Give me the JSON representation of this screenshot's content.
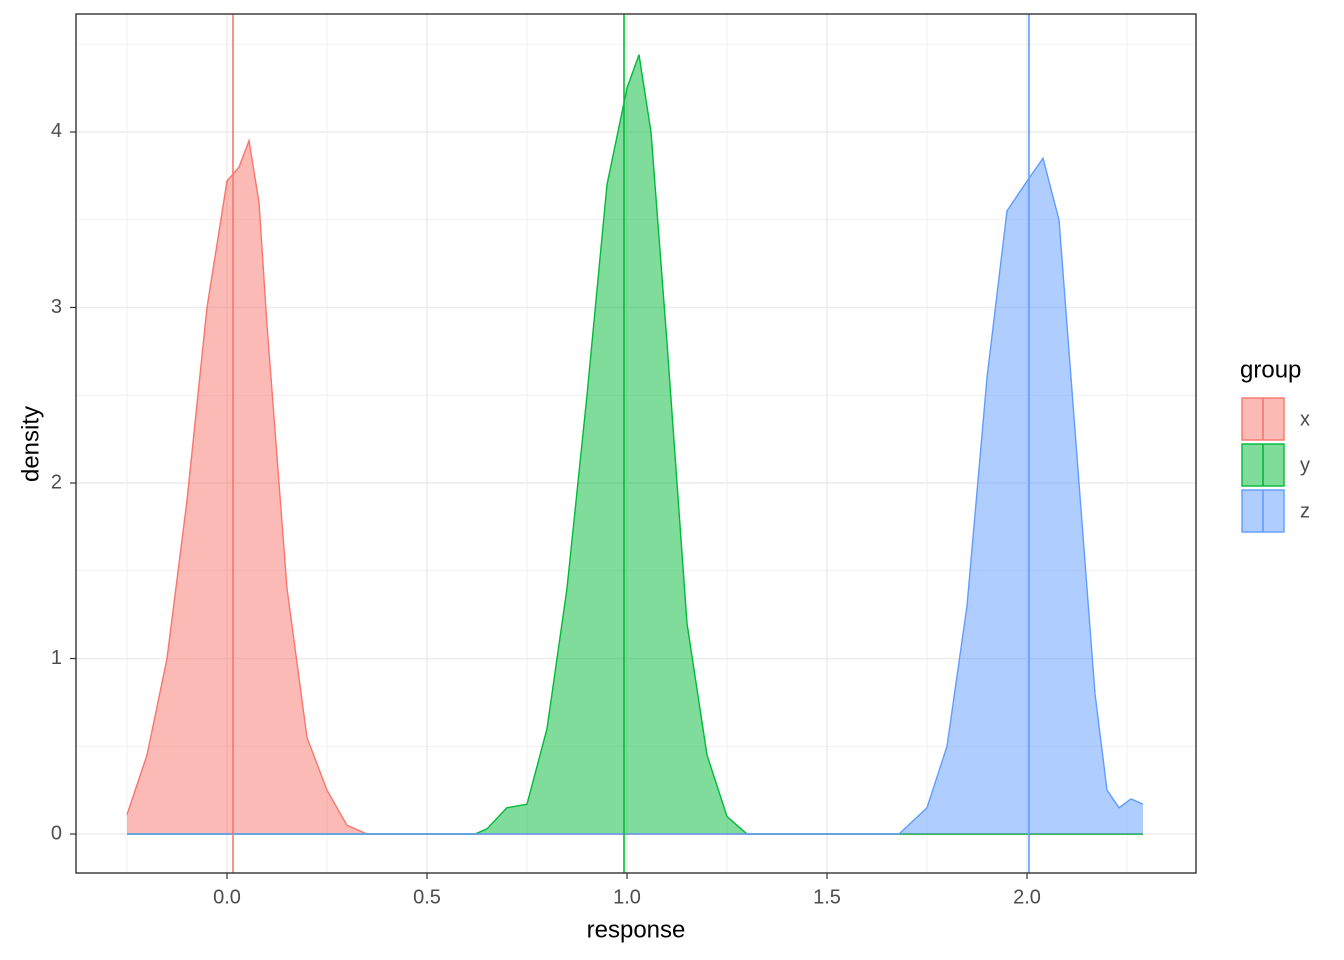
{
  "chart_data": {
    "type": "density",
    "x_label": "response",
    "y_label": "density",
    "legend_title": "group",
    "xlim": [
      -0.3775,
      2.4225
    ],
    "ylim": [
      -0.222,
      4.672
    ],
    "xticks": [
      {
        "value": 0,
        "label": "0.0"
      },
      0.5,
      {
        "value": 1,
        "label": "1.0"
      },
      1.5,
      {
        "value": 2,
        "label": "2.0"
      }
    ],
    "yticks": [
      0,
      1,
      2,
      3,
      4
    ],
    "minor_xticks": [
      -0.25,
      0.25,
      0.75,
      1.25,
      1.75,
      2.25
    ],
    "minor_yticks": [
      0.5,
      1.5,
      2.5,
      3.5,
      4.5
    ],
    "grid": true,
    "series": [
      {
        "name": "x",
        "color": "#F8766D",
        "mean": 0.015,
        "x": [
          -0.25,
          -0.2,
          -0.15,
          -0.1,
          -0.05,
          0.0,
          0.03,
          0.055,
          0.08,
          0.1,
          0.15,
          0.2,
          0.25,
          0.3,
          0.35,
          2.29
        ],
        "values": [
          0.11,
          0.45,
          1.0,
          1.9,
          3.0,
          3.72,
          3.8,
          3.95,
          3.6,
          2.9,
          1.4,
          0.55,
          0.25,
          0.05,
          0,
          0
        ]
      },
      {
        "name": "y",
        "color": "#00BA38",
        "mean": 0.9925,
        "x": [
          -0.25,
          0.62,
          0.65,
          0.7,
          0.75,
          0.8,
          0.85,
          0.9,
          0.95,
          1.0,
          1.03,
          1.06,
          1.1,
          1.15,
          1.2,
          1.25,
          1.3,
          2.29
        ],
        "values": [
          0,
          0,
          0.03,
          0.15,
          0.17,
          0.6,
          1.4,
          2.5,
          3.7,
          4.25,
          4.44,
          4.0,
          2.8,
          1.2,
          0.45,
          0.1,
          0,
          0
        ]
      },
      {
        "name": "z",
        "color": "#619CFF",
        "mean": 2.005,
        "x": [
          -0.25,
          1.68,
          1.75,
          1.8,
          1.85,
          1.9,
          1.95,
          2.0,
          2.04,
          2.08,
          2.12,
          2.17,
          2.2,
          2.23,
          2.26,
          2.29
        ],
        "values": [
          0,
          0,
          0.15,
          0.5,
          1.3,
          2.6,
          3.55,
          3.72,
          3.85,
          3.5,
          2.3,
          0.8,
          0.25,
          0.15,
          0.2,
          0.17
        ]
      }
    ]
  }
}
